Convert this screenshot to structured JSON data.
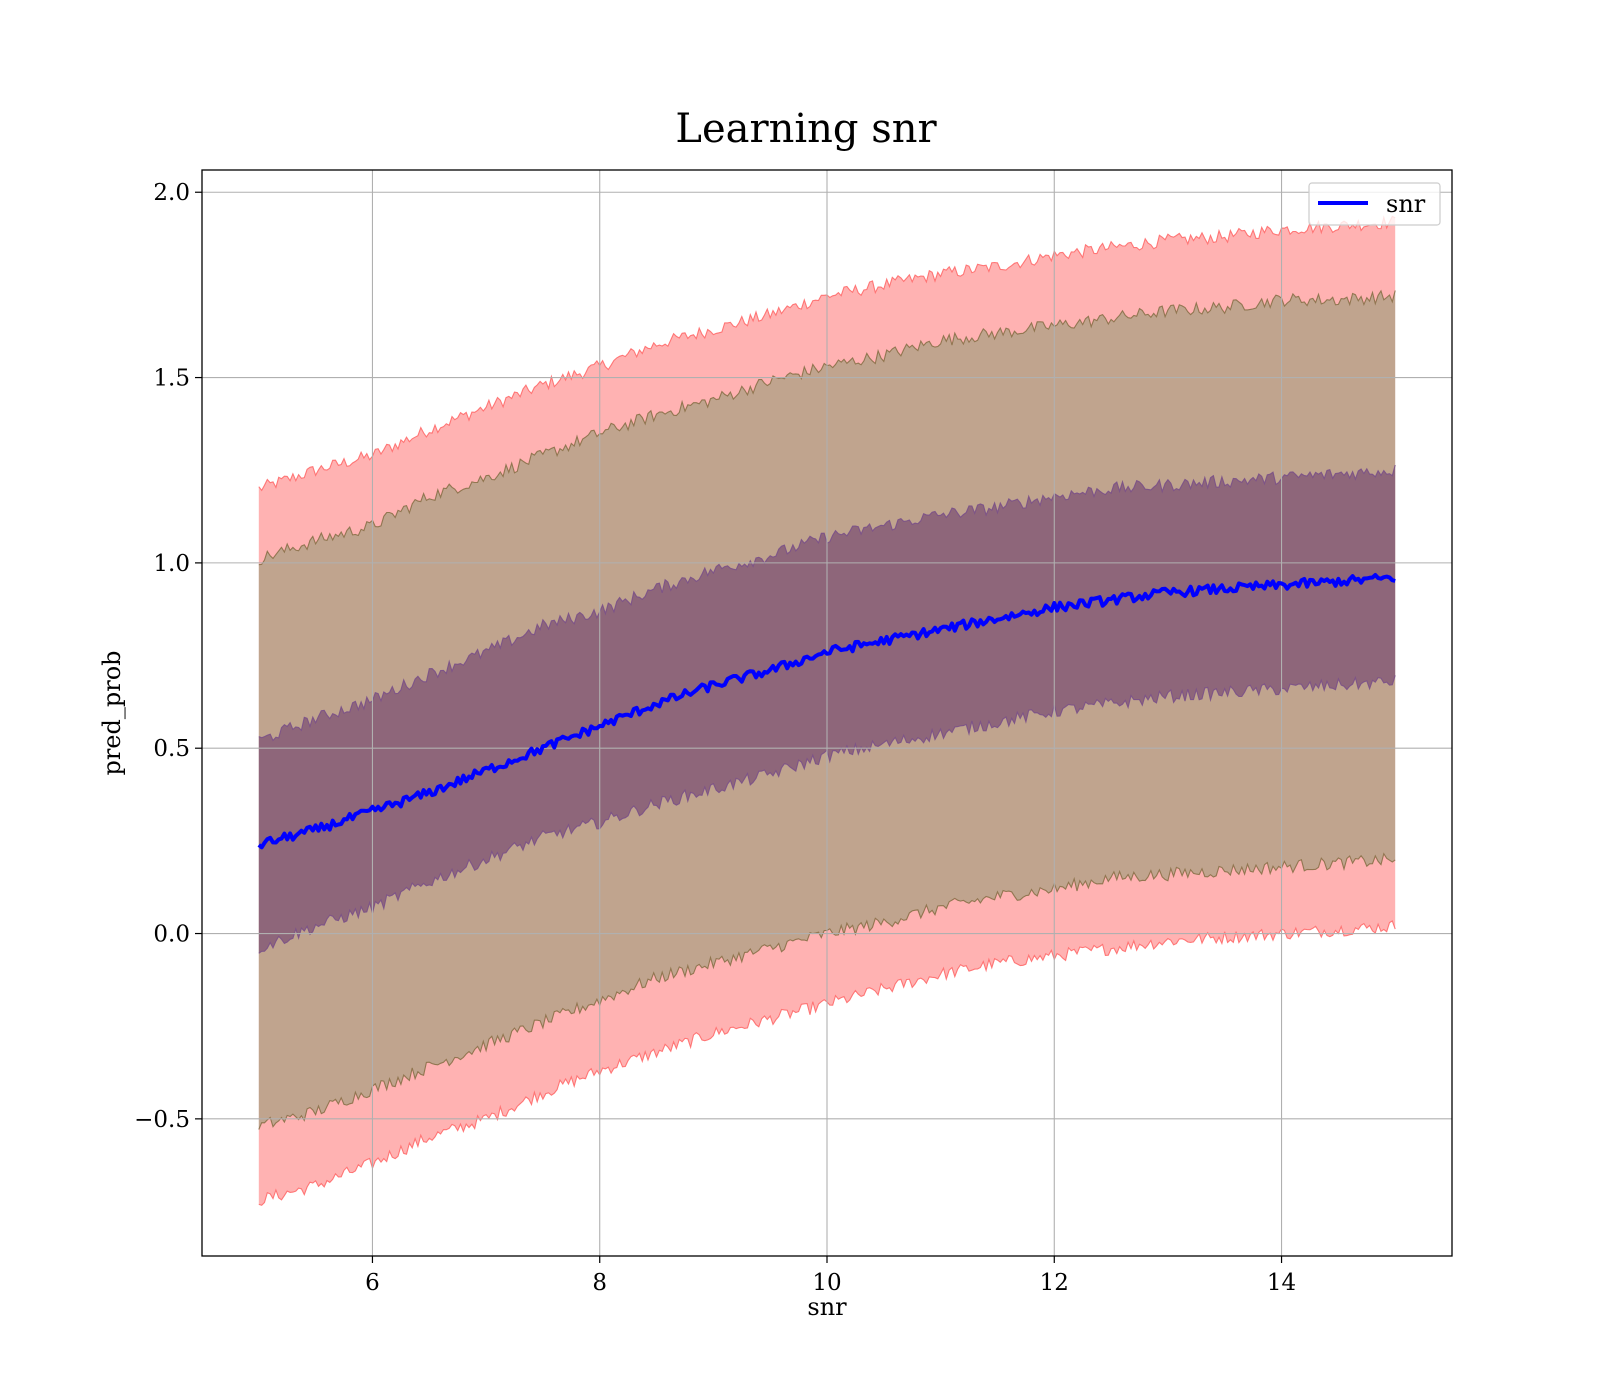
{
  "chart_data": {
    "type": "line",
    "title": "Learning snr",
    "xlabel": "snr",
    "ylabel": "pred_prob",
    "xlim": [
      4.5,
      15.5
    ],
    "ylim": [
      -0.87,
      2.06
    ],
    "x_ticks": [
      {
        "value": 6,
        "label": "6"
      },
      {
        "value": 8,
        "label": "8"
      },
      {
        "value": 10,
        "label": "10"
      },
      {
        "value": 12,
        "label": "12"
      },
      {
        "value": 14,
        "label": "14"
      }
    ],
    "y_ticks": [
      {
        "value": -0.5,
        "label": "−0.5"
      },
      {
        "value": 0.0,
        "label": "0.0"
      },
      {
        "value": 0.5,
        "label": "0.5"
      },
      {
        "value": 1.0,
        "label": "1.0"
      },
      {
        "value": 1.5,
        "label": "1.5"
      },
      {
        "value": 2.0,
        "label": "2.0"
      }
    ],
    "grid": true,
    "legend": {
      "position": "top-right",
      "entries": [
        {
          "label": "snr",
          "color": "#0000ff"
        }
      ]
    },
    "x": [
      5.0,
      5.5,
      6.0,
      6.5,
      7.0,
      7.5,
      8.0,
      8.5,
      9.0,
      9.5,
      10.0,
      10.5,
      11.0,
      11.5,
      12.0,
      12.5,
      13.0,
      13.5,
      14.0,
      14.5,
      15.0
    ],
    "series": [
      {
        "name": "snr",
        "color": "#0000ff",
        "values": [
          0.24,
          0.28,
          0.33,
          0.38,
          0.44,
          0.5,
          0.56,
          0.62,
          0.67,
          0.71,
          0.76,
          0.79,
          0.82,
          0.85,
          0.88,
          0.9,
          0.92,
          0.93,
          0.94,
          0.95,
          0.96
        ]
      }
    ],
    "bands": [
      {
        "fill": "#ff0000",
        "opacity": 0.3,
        "line_color": "#ff6a6a",
        "upper": [
          1.2,
          1.25,
          1.29,
          1.36,
          1.42,
          1.48,
          1.53,
          1.59,
          1.63,
          1.67,
          1.72,
          1.75,
          1.78,
          1.8,
          1.83,
          1.85,
          1.87,
          1.88,
          1.9,
          1.91,
          1.92
        ],
        "lower": [
          -0.72,
          -0.68,
          -0.62,
          -0.55,
          -0.5,
          -0.43,
          -0.37,
          -0.32,
          -0.27,
          -0.23,
          -0.19,
          -0.15,
          -0.11,
          -0.08,
          -0.06,
          -0.04,
          -0.02,
          -0.01,
          0.0,
          0.01,
          0.02
        ]
      },
      {
        "fill": "#4a8a4a",
        "opacity": 0.35,
        "line_color": "#8a7048",
        "upper": [
          1.01,
          1.06,
          1.1,
          1.18,
          1.23,
          1.29,
          1.35,
          1.4,
          1.44,
          1.49,
          1.53,
          1.56,
          1.6,
          1.62,
          1.64,
          1.66,
          1.68,
          1.69,
          1.71,
          1.71,
          1.72
        ],
        "lower": [
          -0.52,
          -0.48,
          -0.42,
          -0.36,
          -0.3,
          -0.24,
          -0.18,
          -0.12,
          -0.08,
          -0.04,
          0.0,
          0.03,
          0.07,
          0.1,
          0.12,
          0.15,
          0.16,
          0.17,
          0.18,
          0.19,
          0.2
        ]
      },
      {
        "fill": "#4b1060",
        "opacity": 0.42,
        "line_color": "#7a5088",
        "upper": [
          0.52,
          0.58,
          0.63,
          0.7,
          0.76,
          0.83,
          0.87,
          0.93,
          0.98,
          1.02,
          1.07,
          1.1,
          1.13,
          1.15,
          1.18,
          1.2,
          1.21,
          1.22,
          1.23,
          1.24,
          1.25
        ],
        "lower": [
          -0.04,
          0.02,
          0.07,
          0.14,
          0.2,
          0.26,
          0.3,
          0.35,
          0.39,
          0.43,
          0.48,
          0.51,
          0.54,
          0.57,
          0.6,
          0.62,
          0.64,
          0.65,
          0.66,
          0.67,
          0.68
        ]
      }
    ]
  }
}
